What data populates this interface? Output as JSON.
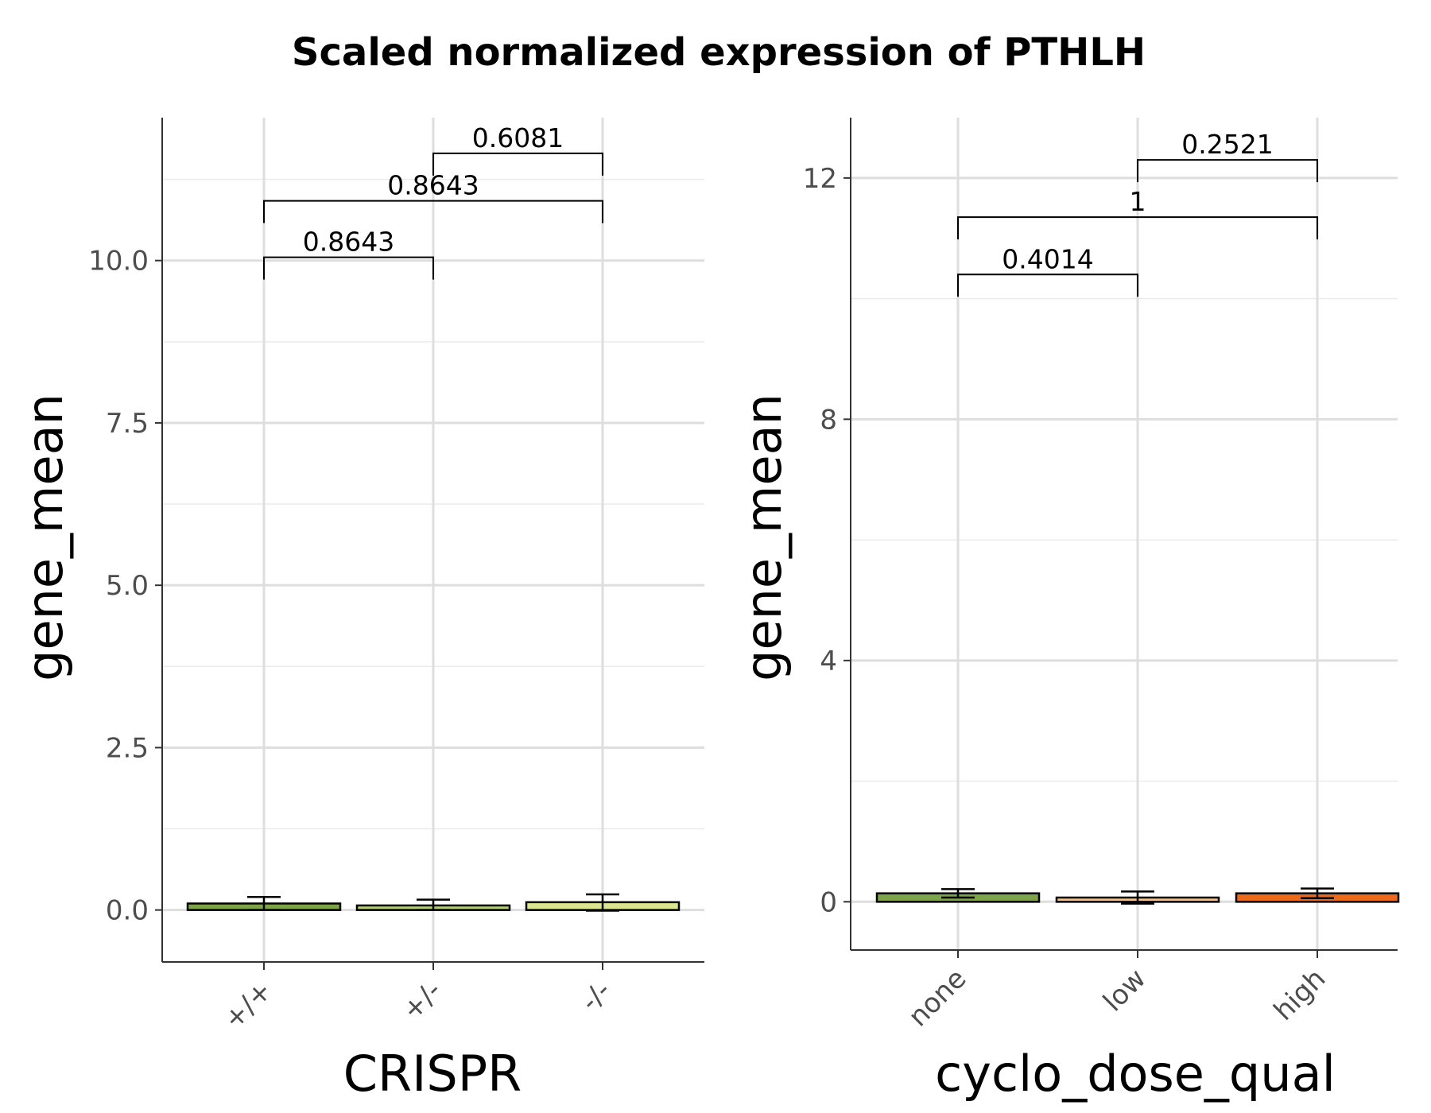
{
  "chart_data": {
    "title": "Scaled normalized expression of PTHLH",
    "panels": [
      {
        "type": "bar",
        "xlabel": "CRISPR",
        "ylabel": "gene_mean",
        "categories": [
          "+/+",
          "+/-",
          "-/-"
        ],
        "values": [
          0.1,
          0.07,
          0.12
        ],
        "error_upper": [
          0.2,
          0.16,
          0.24
        ],
        "error_lower": [
          0.0,
          0.0,
          -0.01
        ],
        "colors": [
          "#7ea44a",
          "#b5cf77",
          "#dce68e"
        ],
        "ylim": [
          -0.8,
          12.2
        ],
        "yticks": [
          "0.0",
          "2.5",
          "5.0",
          "7.5",
          "10.0"
        ],
        "comparisons": [
          {
            "from": 0,
            "to": 1,
            "label": "0.8643"
          },
          {
            "from": 0,
            "to": 2,
            "label": "0.8643"
          },
          {
            "from": 1,
            "to": 2,
            "label": "0.6081"
          }
        ],
        "grid": true
      },
      {
        "type": "bar",
        "xlabel": "cyclo_dose_qual",
        "ylabel": "gene_mean",
        "categories": [
          "none",
          "low",
          "high"
        ],
        "values": [
          0.14,
          0.07,
          0.14
        ],
        "error_upper": [
          0.21,
          0.17,
          0.22
        ],
        "error_lower": [
          0.07,
          -0.03,
          0.06
        ],
        "colors": [
          "#7ea44a",
          "#f3c58c",
          "#ec6a1e"
        ],
        "ylim": [
          -0.8,
          13.0
        ],
        "yticks": [
          "0",
          "4",
          "8",
          "12"
        ],
        "comparisons": [
          {
            "from": 0,
            "to": 1,
            "label": "0.4014"
          },
          {
            "from": 0,
            "to": 2,
            "label": "1"
          },
          {
            "from": 1,
            "to": 2,
            "label": "0.2521"
          }
        ],
        "grid": true
      }
    ]
  }
}
